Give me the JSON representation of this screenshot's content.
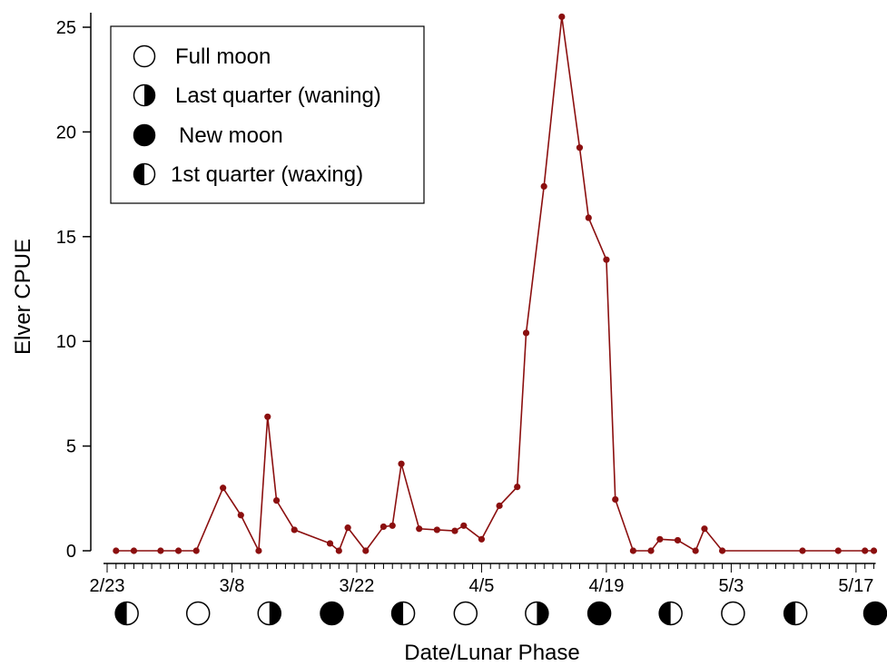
{
  "chart_data": {
    "type": "line",
    "title": "",
    "xlabel": "Date/Lunar Phase",
    "ylabel": "Elver CPUE",
    "ylim": [
      0,
      26
    ],
    "xlim": [
      0,
      86
    ],
    "grid": false,
    "line_color": "#8b0f0f",
    "y_ticks": [
      0,
      5,
      10,
      15,
      20,
      25
    ],
    "x_ticks": [
      {
        "x": 0,
        "label": "2/23"
      },
      {
        "x": 14,
        "label": "3/8"
      },
      {
        "x": 28,
        "label": "3/22"
      },
      {
        "x": 42,
        "label": "4/5"
      },
      {
        "x": 56,
        "label": "4/19"
      },
      {
        "x": 70,
        "label": "5/3"
      },
      {
        "x": 84,
        "label": "5/17"
      }
    ],
    "series": [
      {
        "x": [
          1,
          3,
          6,
          8,
          10,
          13,
          15,
          17,
          18,
          19,
          21,
          25,
          26,
          27,
          29,
          31,
          32,
          33,
          35,
          37,
          39,
          40,
          42,
          44,
          46,
          47,
          49,
          51,
          53,
          54,
          56,
          57,
          59,
          61,
          62,
          64,
          66,
          67,
          69,
          78,
          82,
          85,
          86
        ],
        "y": [
          0,
          0,
          0,
          0,
          0,
          3.0,
          1.7,
          0,
          6.4,
          2.4,
          1.0,
          0.35,
          0.0,
          1.1,
          0.0,
          1.15,
          1.2,
          4.15,
          1.05,
          1.0,
          0.95,
          1.2,
          0.55,
          2.15,
          3.05,
          10.4,
          17.4,
          25.5,
          19.25,
          15.9,
          13.9,
          2.45,
          0,
          0,
          0.55,
          0.5,
          0,
          1.05,
          0,
          0,
          0,
          0,
          0
        ]
      }
    ],
    "lunar_phases": [
      {
        "x": 2,
        "phase": "1st quarter (waxing)"
      },
      {
        "x": 10,
        "phase": "Full moon"
      },
      {
        "x": 18,
        "phase": "Last quarter (waning)"
      },
      {
        "x": 25,
        "phase": "New moon"
      },
      {
        "x": 33,
        "phase": "1st quarter (waxing)"
      },
      {
        "x": 40,
        "phase": "Full moon"
      },
      {
        "x": 48,
        "phase": "Last quarter (waning)"
      },
      {
        "x": 55,
        "phase": "New moon"
      },
      {
        "x": 63,
        "phase": "1st quarter (waxing)"
      },
      {
        "x": 70,
        "phase": "Full moon"
      },
      {
        "x": 77,
        "phase": "1st quarter (waxing)"
      },
      {
        "x": 86,
        "phase": "New moon"
      }
    ],
    "legend": {
      "placement": "top-left",
      "entries": [
        {
          "phase": "Full moon",
          "label": "Full moon"
        },
        {
          "phase": "Last quarter (waning)",
          "label": "Last quarter (waning)"
        },
        {
          "phase": "New moon",
          "label": "New moon"
        },
        {
          "phase": "1st quarter (waxing)",
          "label": "1st quarter (waxing)"
        }
      ]
    }
  }
}
